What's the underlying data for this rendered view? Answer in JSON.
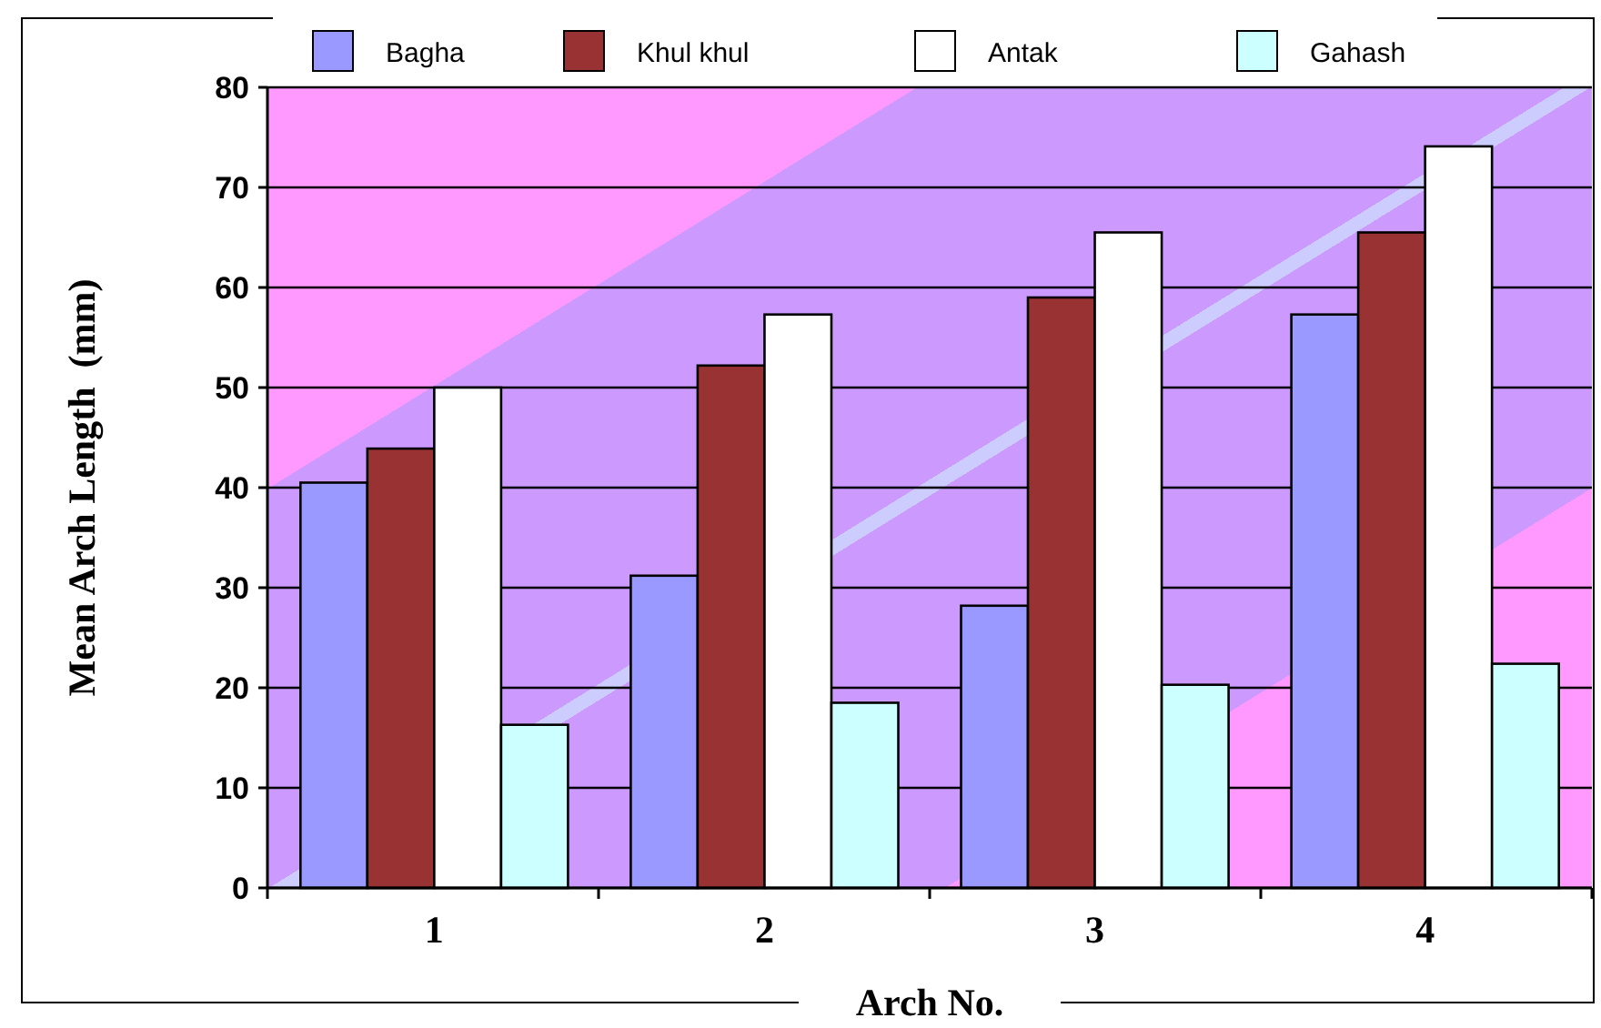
{
  "chart_data": {
    "type": "bar",
    "xlabel": "Arch No.",
    "ylabel": "Mean Arch Length  (mm)",
    "categories": [
      "1",
      "2",
      "3",
      "4"
    ],
    "series": [
      {
        "name": "Bagha",
        "color": "#9999ff",
        "values": [
          40.5,
          31.2,
          28.2,
          57.3
        ]
      },
      {
        "name": "Khul khul",
        "color": "#993333",
        "values": [
          43.9,
          52.2,
          59.0,
          65.5
        ]
      },
      {
        "name": "Antak",
        "color": "#ffffff",
        "values": [
          50.0,
          57.3,
          65.5,
          74.1
        ]
      },
      {
        "name": "Gahash",
        "color": "#ccffff",
        "values": [
          16.3,
          18.5,
          20.3,
          22.4
        ]
      }
    ],
    "ylim": [
      0,
      80
    ],
    "yticks": [
      0,
      10,
      20,
      30,
      40,
      50,
      60,
      70,
      80
    ],
    "grid": "y",
    "legend": "top"
  }
}
